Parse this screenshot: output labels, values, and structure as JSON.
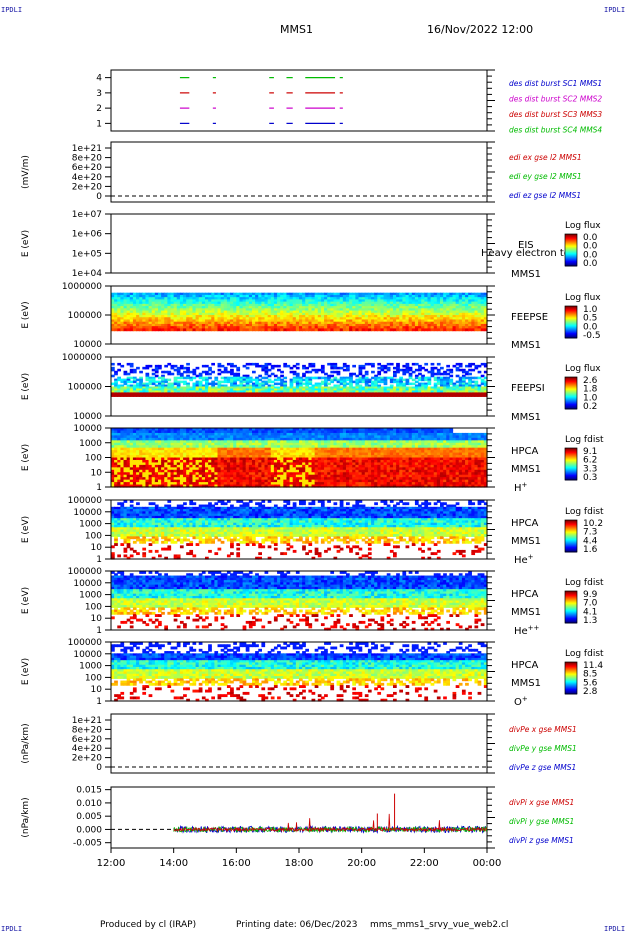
{
  "header": {
    "corner_label": "IPDLI",
    "spacecraft": "MMS1",
    "datetime": "16/Nov/2022 12:00"
  },
  "footer": {
    "produced_by": "Produced by cl (IRAP)",
    "printing_date": "Printing date: 06/Dec/2023",
    "script_name": "mms_mms1_srvy_vue_web2.cl"
  },
  "x_axis": {
    "ticks": [
      "12:00",
      "14:00",
      "16:00",
      "18:00",
      "20:00",
      "22:00",
      "00:00"
    ],
    "range_hours": [
      12,
      24
    ]
  },
  "chart_data": [
    {
      "id": "burst",
      "type": "line",
      "ylim": [
        0.5,
        4.5
      ],
      "yticks": [
        "4",
        "3",
        "2",
        "1"
      ],
      "series": [
        {
          "name": "des dist burst SC1 MMS1",
          "color": "#0000cc",
          "level": 1,
          "intervals": [
            [
              14.2,
              14.5
            ],
            [
              15.25,
              15.35
            ],
            [
              17.05,
              17.2
            ],
            [
              17.6,
              17.8
            ],
            [
              18.2,
              19.15
            ],
            [
              19.3,
              19.4
            ]
          ]
        },
        {
          "name": "des dist burst SC2 MMS2",
          "color": "#cc00cc",
          "level": 2,
          "intervals": [
            [
              14.2,
              14.5
            ],
            [
              15.25,
              15.35
            ],
            [
              17.05,
              17.2
            ],
            [
              17.6,
              17.8
            ],
            [
              18.2,
              19.15
            ],
            [
              19.3,
              19.4
            ]
          ]
        },
        {
          "name": "des dist burst SC3 MMS3",
          "color": "#cc0000",
          "level": 3,
          "intervals": [
            [
              14.2,
              14.5
            ],
            [
              15.25,
              15.35
            ],
            [
              17.05,
              17.2
            ],
            [
              17.6,
              17.8
            ],
            [
              18.2,
              19.15
            ],
            [
              19.3,
              19.4
            ]
          ]
        },
        {
          "name": "des dist burst SC4 MMS4",
          "color": "#00bb00",
          "level": 4,
          "intervals": [
            [
              14.2,
              14.5
            ],
            [
              15.25,
              15.35
            ],
            [
              17.05,
              17.2
            ],
            [
              17.6,
              17.8
            ],
            [
              18.2,
              19.15
            ],
            [
              19.3,
              19.4
            ]
          ]
        }
      ]
    },
    {
      "id": "edi",
      "type": "line",
      "ylabel": "(mV/m)",
      "yticks": [
        "1e+21",
        "8e+20",
        "6e+20",
        "4e+20",
        "2e+20",
        "0"
      ],
      "series": [
        {
          "name": "edi ex gse l2 MMS1",
          "color": "#cc0000"
        },
        {
          "name": "edi ey gse l2 MMS1",
          "color": "#00bb00"
        },
        {
          "name": "edi ez gse l2 MMS1",
          "color": "#0000cc"
        }
      ]
    },
    {
      "id": "eis",
      "type": "heatmap",
      "ylabel": "E (eV)",
      "yticks": [
        "1e+07",
        "1e+06",
        "1e+05",
        "1e+04"
      ],
      "labels": [
        "EIS",
        "MMS1"
      ],
      "overlay_text": "Heavy electron to",
      "colorbar": {
        "title": "Log flux",
        "ticks": [
          "0.0",
          "0.0",
          "0.0",
          "0.0"
        ]
      }
    },
    {
      "id": "feepse",
      "type": "heatmap",
      "ylabel": "E (eV)",
      "yticks": [
        "1000000",
        "100000",
        "10000"
      ],
      "labels": [
        "FEEPSE",
        "MMS1"
      ],
      "colorbar": {
        "title": "Log flux",
        "ticks": [
          "1.0",
          "0.5",
          "0.0",
          "-0.5"
        ]
      }
    },
    {
      "id": "feepsi",
      "type": "heatmap",
      "ylabel": "E (eV)",
      "yticks": [
        "1000000",
        "100000",
        "10000"
      ],
      "labels": [
        "FEEPSI",
        "MMS1"
      ],
      "colorbar": {
        "title": "Log flux",
        "ticks": [
          "2.6",
          "1.8",
          "1.0",
          "0.2"
        ]
      }
    },
    {
      "id": "hpca_h",
      "type": "heatmap",
      "ylabel": "E (eV)",
      "yticks": [
        "10000",
        "1000",
        "100",
        "10",
        "1"
      ],
      "labels": [
        "HPCA",
        "MMS1",
        "H+"
      ],
      "colorbar": {
        "title": "Log fdist",
        "ticks": [
          "9.1",
          "6.2",
          "3.3",
          "0.3"
        ]
      }
    },
    {
      "id": "hpca_he",
      "type": "heatmap",
      "ylabel": "E (eV)",
      "yticks": [
        "100000",
        "10000",
        "1000",
        "100",
        "10",
        "1"
      ],
      "labels": [
        "HPCA",
        "MMS1",
        "He+"
      ],
      "colorbar": {
        "title": "Log fdist",
        "ticks": [
          "10.2",
          "7.3",
          "4.4",
          "1.6"
        ]
      }
    },
    {
      "id": "hpca_hepp",
      "type": "heatmap",
      "ylabel": "E (eV)",
      "yticks": [
        "100000",
        "10000",
        "1000",
        "100",
        "10",
        "1"
      ],
      "labels": [
        "HPCA",
        "MMS1",
        "He++"
      ],
      "colorbar": {
        "title": "Log fdist",
        "ticks": [
          "9.9",
          "7.0",
          "4.1",
          "1.3"
        ]
      }
    },
    {
      "id": "hpca_o",
      "type": "heatmap",
      "ylabel": "E (eV)",
      "yticks": [
        "100000",
        "10000",
        "1000",
        "100",
        "10",
        "1"
      ],
      "labels": [
        "HPCA",
        "MMS1",
        "O+"
      ],
      "colorbar": {
        "title": "Log fdist",
        "ticks": [
          "11.4",
          "8.5",
          "5.6",
          "2.8"
        ]
      }
    },
    {
      "id": "divpe",
      "type": "line",
      "ylabel": "(nPa/km)",
      "yticks": [
        "1e+21",
        "8e+20",
        "6e+20",
        "4e+20",
        "2e+20",
        "0"
      ],
      "series": [
        {
          "name": "divPe x gse MMS1",
          "color": "#cc0000"
        },
        {
          "name": "divPe y gse MMS1",
          "color": "#00bb00"
        },
        {
          "name": "divPe z gse MMS1",
          "color": "#0000cc"
        }
      ]
    },
    {
      "id": "divpi",
      "type": "line",
      "ylabel": "(nPa/km)",
      "ylim": [
        -0.007,
        0.016
      ],
      "yticks": [
        "0.015",
        "0.010",
        "0.005",
        "0.000",
        "-0.005"
      ],
      "series": [
        {
          "name": "divPi x gse MMS1",
          "color": "#cc0000"
        },
        {
          "name": "divPi y gse MMS1",
          "color": "#00bb00"
        },
        {
          "name": "divPi z gse MMS1",
          "color": "#0000cc"
        }
      ]
    }
  ]
}
